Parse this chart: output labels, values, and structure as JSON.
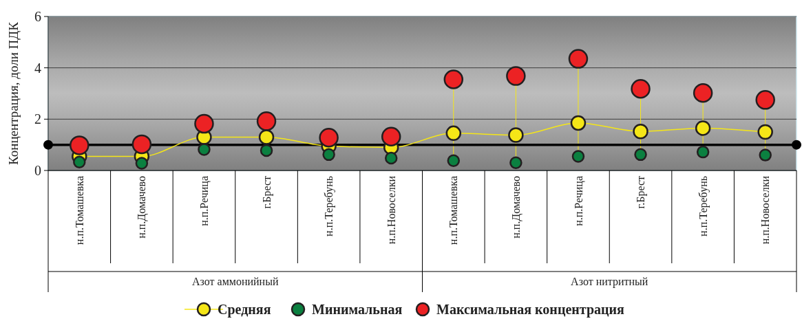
{
  "chart_data": {
    "type": "line",
    "ylabel": "Концентрация, доли ПДК",
    "categories": [
      "н.п.Томашевка",
      "н.п.Домачево",
      "н.п.Речица",
      "г.Брест",
      "н.п.Теребунь",
      "н.п.Новоселки",
      "н.п.Томашевка",
      "н.п.Домачево",
      "н.п.Речица",
      "г.Брест",
      "н.п.Теребунь",
      "н.п.Новоселки"
    ],
    "series": [
      {
        "name": "Средняя",
        "color": "#f5e617",
        "values": [
          0.55,
          0.55,
          1.3,
          1.3,
          0.95,
          0.9,
          1.45,
          1.38,
          1.85,
          1.52,
          1.65,
          1.5
        ]
      },
      {
        "name": "Минимальная",
        "type": "scatter",
        "color": "#0b8040",
        "values": [
          0.33,
          0.28,
          0.82,
          0.78,
          0.62,
          0.48,
          0.38,
          0.3,
          0.55,
          0.62,
          0.72,
          0.6
        ]
      },
      {
        "name": "Максимальная концентрация",
        "type": "scatter",
        "color": "#ec2224",
        "values": [
          0.98,
          1.02,
          1.82,
          1.92,
          1.28,
          1.32,
          3.55,
          3.68,
          4.35,
          3.18,
          3.02,
          2.75
        ]
      }
    ],
    "ylim": [
      0,
      6
    ],
    "yticks": [
      0,
      2,
      4,
      6
    ],
    "grid": "y",
    "marker": "circle",
    "legend": "bottom",
    "ref_lines": [
      {
        "axis": "y",
        "value": 1,
        "color": "#000000"
      }
    ],
    "annotations": [
      "Азот аммонийный",
      "Азот нитритный"
    ]
  }
}
